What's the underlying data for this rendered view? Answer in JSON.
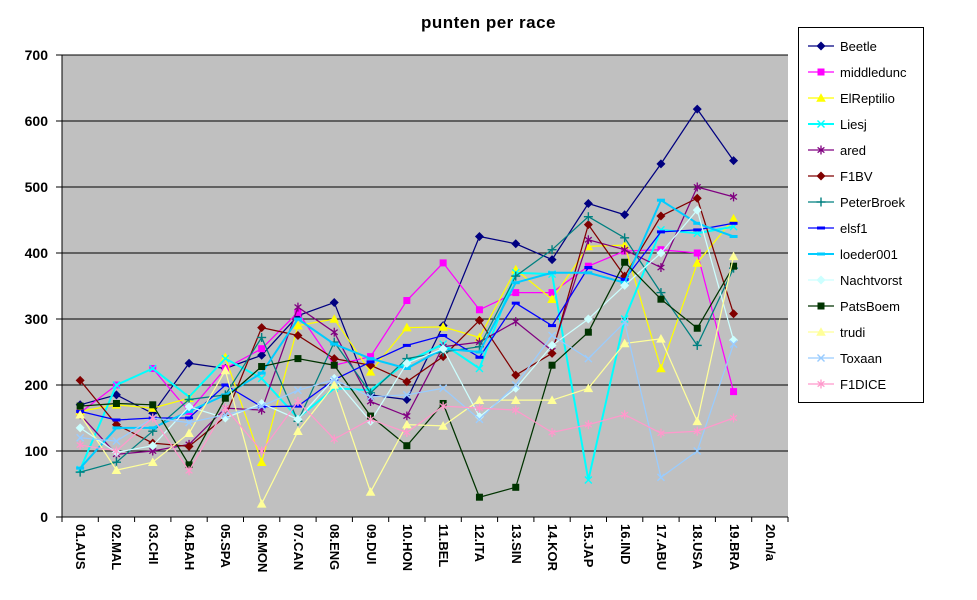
{
  "chart_data": {
    "type": "line",
    "title": "punten per race",
    "xlabel": "",
    "ylabel": "",
    "ylim": [
      0,
      700
    ],
    "yticks": [
      0,
      100,
      200,
      300,
      400,
      500,
      600,
      700
    ],
    "grid": true,
    "legend_position": "right",
    "plot_background": "#C0C0C0",
    "gridline_color": "#000000",
    "categories": [
      "01.AUS",
      "02.MAL",
      "03.CHI",
      "04.BAH",
      "05.SPA",
      "06.MON",
      "07.CAN",
      "08.ENG",
      "09.DUI",
      "10.HON",
      "11.BEL",
      "12.ITA",
      "13.SIN",
      "14.KOR",
      "15.JAP",
      "16.IND",
      "17.ABU",
      "18.USA",
      "19.BRA",
      "20.n/a"
    ],
    "series": [
      {
        "name": "Beetle",
        "color": "#000080",
        "marker": "diamond",
        "width": 1.25,
        "values": [
          170,
          185,
          157,
          233,
          225,
          245,
          305,
          325,
          185,
          178,
          290,
          425,
          414,
          390,
          475,
          458,
          535,
          618,
          540
        ]
      },
      {
        "name": "middledunc",
        "color": "#FF00FF",
        "marker": "square",
        "width": 1.25,
        "values": [
          158,
          200,
          225,
          160,
          225,
          255,
          310,
          230,
          243,
          328,
          385,
          314,
          340,
          340,
          380,
          403,
          405,
          400,
          190
        ]
      },
      {
        "name": "ElReptilio",
        "color": "#FFFF00",
        "marker": "triangle",
        "width": 1.25,
        "values": [
          160,
          170,
          165,
          180,
          242,
          83,
          290,
          300,
          220,
          287,
          288,
          272,
          375,
          330,
          410,
          412,
          225,
          385,
          452
        ]
      },
      {
        "name": "Liesj",
        "color": "#00FFFF",
        "marker": "x",
        "width": 2,
        "values": [
          72,
          200,
          225,
          182,
          240,
          210,
          150,
          195,
          192,
          235,
          262,
          225,
          370,
          368,
          56,
          300,
          435,
          430,
          440
        ]
      },
      {
        "name": "ared",
        "color": "#800080",
        "marker": "star",
        "width": 1.25,
        "values": [
          155,
          95,
          100,
          110,
          165,
          162,
          318,
          280,
          175,
          153,
          258,
          265,
          296,
          252,
          420,
          405,
          378,
          500,
          485
        ]
      },
      {
        "name": "F1BV",
        "color": "#800000",
        "marker": "diamond",
        "width": 1.25,
        "values": [
          207,
          140,
          112,
          107,
          152,
          287,
          275,
          240,
          230,
          205,
          243,
          298,
          215,
          248,
          443,
          365,
          456,
          483,
          308
        ]
      },
      {
        "name": "PeterBroek",
        "color": "#008080",
        "marker": "plus",
        "width": 1.25,
        "values": [
          68,
          83,
          130,
          178,
          185,
          272,
          145,
          265,
          188,
          240,
          250,
          258,
          365,
          405,
          455,
          423,
          340,
          260,
          377
        ]
      },
      {
        "name": "elsf1",
        "color": "#0000FF",
        "marker": "dash",
        "width": 1.25,
        "values": [
          160,
          147,
          150,
          150,
          200,
          167,
          168,
          208,
          235,
          260,
          275,
          242,
          324,
          290,
          378,
          360,
          432,
          435,
          445
        ]
      },
      {
        "name": "loeder001",
        "color": "#00CCFF",
        "marker": "dash",
        "width": 2,
        "values": [
          74,
          135,
          135,
          160,
          185,
          218,
          300,
          262,
          240,
          225,
          255,
          250,
          355,
          370,
          370,
          355,
          480,
          445,
          425
        ]
      },
      {
        "name": "Nachtvorst",
        "color": "#CCFFFF",
        "marker": "diamond",
        "width": 1.25,
        "values": [
          135,
          98,
          108,
          167,
          150,
          172,
          148,
          210,
          145,
          233,
          255,
          152,
          195,
          260,
          300,
          351,
          400,
          465,
          268
        ]
      },
      {
        "name": "PatsBoem",
        "color": "#003300",
        "marker": "square",
        "width": 1.25,
        "values": [
          168,
          172,
          170,
          79,
          180,
          228,
          240,
          230,
          153,
          108,
          172,
          30,
          45,
          230,
          280,
          386,
          330,
          286,
          380
        ]
      },
      {
        "name": "trudi",
        "color": "#FFFF99",
        "marker": "triangle",
        "width": 1.25,
        "values": [
          155,
          71,
          83,
          127,
          222,
          20,
          130,
          200,
          38,
          140,
          138,
          177,
          177,
          177,
          195,
          263,
          270,
          145,
          395
        ]
      },
      {
        "name": "Toxaan",
        "color": "#99CCFF",
        "marker": "x",
        "width": 1.25,
        "values": [
          120,
          115,
          150,
          143,
          155,
          168,
          192,
          208,
          182,
          185,
          195,
          148,
          200,
          275,
          240,
          295,
          60,
          100,
          262
        ]
      },
      {
        "name": "F1DICE",
        "color": "#FF99CC",
        "marker": "star",
        "width": 1.25,
        "values": [
          109,
          100,
          150,
          70,
          165,
          100,
          175,
          118,
          148,
          128,
          168,
          165,
          162,
          128,
          140,
          155,
          127,
          130,
          150
        ]
      }
    ]
  }
}
